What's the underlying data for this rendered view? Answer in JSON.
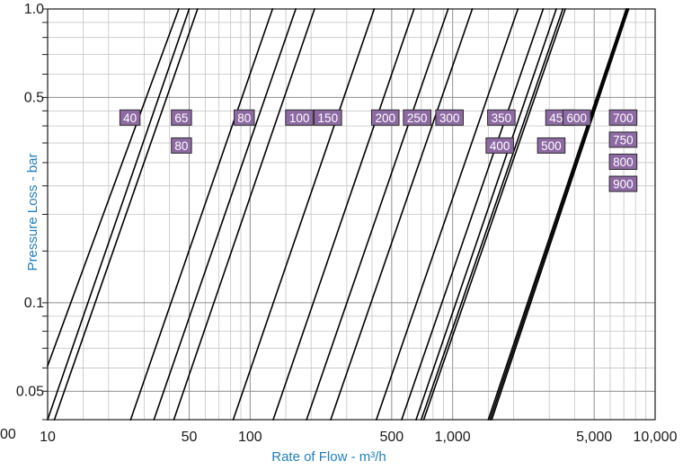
{
  "chart_data": {
    "type": "line",
    "xlabel": "Rate of Flow - m³/h",
    "ylabel": "Pressure Loss - bar",
    "x_scale": "log",
    "y_scale": "log",
    "xlim": [
      10,
      10000
    ],
    "ylim": [
      0.04,
      1.0
    ],
    "grid": true,
    "x_ticks": [
      {
        "value": 10,
        "label": "10"
      },
      {
        "value": 50,
        "label": "50"
      },
      {
        "value": 100,
        "label": "100"
      },
      {
        "value": 500,
        "label": "500"
      },
      {
        "value": 1000,
        "label": "1,000"
      },
      {
        "value": 5000,
        "label": "5,000"
      },
      {
        "value": 10000,
        "label": "10,000"
      }
    ],
    "left_partial_tick": "00",
    "y_ticks": [
      {
        "value": 1.0,
        "label": "1.0"
      },
      {
        "value": 0.5,
        "label": "0.5"
      },
      {
        "value": 0.1,
        "label": "0.1"
      },
      {
        "value": 0.05,
        "label": "0.05"
      }
    ],
    "line_color": "#000000",
    "label_color": "#8d6aa3",
    "series": [
      {
        "name": "40",
        "points": [
          [
            10,
            0.061
          ],
          [
            44.4,
            1.0
          ]
        ]
      },
      {
        "name": "65",
        "points": [
          [
            10,
            0.04
          ],
          [
            50,
            1.0
          ]
        ]
      },
      {
        "name": "80",
        "points": [
          [
            10.8,
            0.04
          ],
          [
            55,
            1.0
          ]
        ]
      },
      {
        "name": "80",
        "points": [
          [
            25.7,
            0.04
          ],
          [
            129,
            1.0
          ]
        ]
      },
      {
        "name": "100",
        "points": [
          [
            33.5,
            0.04
          ],
          [
            168,
            1.0
          ]
        ]
      },
      {
        "name": "150",
        "points": [
          [
            42,
            0.04
          ],
          [
            208,
            1.0
          ]
        ]
      },
      {
        "name": "200",
        "points": [
          [
            82.5,
            0.04
          ],
          [
            410,
            1.0
          ]
        ]
      },
      {
        "name": "250",
        "points": [
          [
            130,
            0.04
          ],
          [
            645,
            1.0
          ]
        ]
      },
      {
        "name": "300",
        "points": [
          [
            190,
            0.04
          ],
          [
            950,
            1.0
          ]
        ]
      },
      {
        "name": "350",
        "points": [
          [
            250,
            0.04
          ],
          [
            1250,
            1.0
          ]
        ]
      },
      {
        "name": "400",
        "points": [
          [
            420,
            0.04
          ],
          [
            2100,
            1.0
          ]
        ]
      },
      {
        "name": "450",
        "points": [
          [
            560,
            0.04
          ],
          [
            2800,
            1.0
          ]
        ]
      },
      {
        "name": "500",
        "points": [
          [
            660,
            0.04
          ],
          [
            3250,
            1.0
          ]
        ]
      },
      {
        "name": "600",
        "points": [
          [
            700,
            0.04
          ],
          [
            3500,
            1.0
          ]
        ]
      },
      {
        "name": "700",
        "points": [
          [
            720,
            0.04
          ],
          [
            3600,
            1.0
          ]
        ]
      },
      {
        "name": "750",
        "points": [
          [
            1500,
            0.04
          ],
          [
            7200,
            1.0
          ]
        ]
      },
      {
        "name": "800",
        "points": [
          [
            1530,
            0.04
          ],
          [
            7300,
            1.0
          ]
        ]
      },
      {
        "name": "900",
        "points": [
          [
            1560,
            0.04
          ],
          [
            7400,
            1.0
          ]
        ]
      }
    ],
    "annotations": [
      {
        "label": "40",
        "x": 25.5,
        "y": 0.427
      },
      {
        "label": "65",
        "x": 45.8,
        "y": 0.427
      },
      {
        "label": "80",
        "x": 45.8,
        "y": 0.343
      },
      {
        "label": "80",
        "x": 93.5,
        "y": 0.427
      },
      {
        "label": "100",
        "x": 175,
        "y": 0.427
      },
      {
        "label": "150",
        "x": 242,
        "y": 0.427
      },
      {
        "label": "200",
        "x": 465,
        "y": 0.427
      },
      {
        "label": "250",
        "x": 668,
        "y": 0.427
      },
      {
        "label": "300",
        "x": 965,
        "y": 0.427
      },
      {
        "label": "350",
        "x": 1740,
        "y": 0.427
      },
      {
        "label": "400",
        "x": 1710,
        "y": 0.343
      },
      {
        "label": "450",
        "x": 3370,
        "y": 0.427
      },
      {
        "label": "500",
        "x": 3070,
        "y": 0.343
      },
      {
        "label": "600",
        "x": 4100,
        "y": 0.427
      },
      {
        "label": "700",
        "x": 6950,
        "y": 0.427
      },
      {
        "label": "750",
        "x": 6950,
        "y": 0.359
      },
      {
        "label": "800",
        "x": 6950,
        "y": 0.302
      },
      {
        "label": "900",
        "x": 6950,
        "y": 0.254
      }
    ]
  }
}
